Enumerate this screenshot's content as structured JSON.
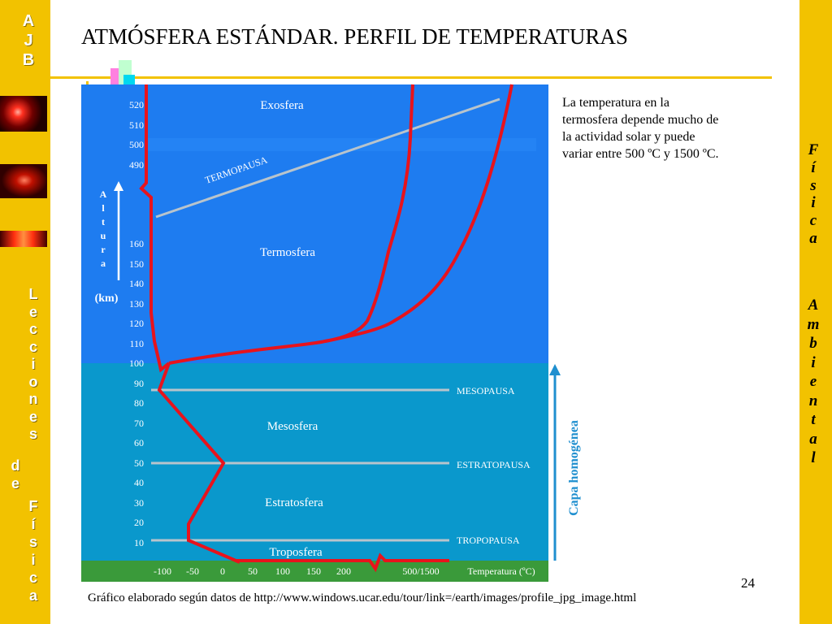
{
  "slide": {
    "title": "ATMÓSFERA ESTÁNDAR. PERFIL DE TEMPERATURAS",
    "left_logo_letters": [
      "A",
      "J",
      "B"
    ],
    "left_vertical_word1": [
      "L",
      "e",
      "c",
      "c",
      "i",
      "o",
      "n",
      "e",
      "s"
    ],
    "left_vertical_word2": [
      "d",
      "e"
    ],
    "left_vertical_word3": [
      "F",
      "í",
      "s",
      "i",
      "c",
      "a"
    ],
    "right_vertical_word1": [
      "F",
      "í",
      "s",
      "i",
      "c",
      "a"
    ],
    "right_vertical_word2": [
      "A",
      "m",
      "b",
      "i",
      "e",
      "n",
      "t",
      "a",
      "l"
    ],
    "description": "La temperatura en la termosfera depende mucho de la actividad solar y puede variar entre 500 ºC y 1500 ºC.",
    "page_number": "24",
    "source": "Gráfico elaborado según datos de  http://www.windows.ucar.edu/tour/link=/earth/images/profile_jpg_image.html"
  },
  "diagram": {
    "altitude_label_letters": [
      "A",
      "l",
      "t",
      "u",
      "r",
      "a"
    ],
    "altitude_unit": "(km)",
    "upper_ticks": [
      "520",
      "510",
      "500",
      "490"
    ],
    "lower_ticks": [
      "160",
      "150",
      "140",
      "130",
      "120",
      "110",
      "100",
      "90",
      "80",
      "70",
      "60",
      "50",
      "40",
      "30",
      "20",
      "10"
    ],
    "x_ticks": [
      "-100",
      "-50",
      "0",
      "50",
      "100",
      "150",
      "200",
      "500/1500"
    ],
    "x_axis_title": "Temperatura (ºC)",
    "layers": {
      "exosphere": "Exosfera",
      "thermosphere": "Termosfera",
      "mesosphere": "Mesosfera",
      "stratosphere": "Estratosfera",
      "troposphere": "Troposfera"
    },
    "pauses": {
      "thermopause": "TERMOPAUSA",
      "mesopause": "MESOPAUSA",
      "stratopause": "ESTRATOPAUSA",
      "tropopause": "TROPOPAUSA"
    },
    "homogeneous_label": "Capa homogénea",
    "colors": {
      "sky_upper": "#1e7cf0",
      "sky_lower": "#0a98cc",
      "ground": "#3a9a3a",
      "profile": "#e8131c",
      "pause_line": "#b8c4cc",
      "arrow": "#1f8fcf",
      "frame": "#f2c200"
    }
  }
}
